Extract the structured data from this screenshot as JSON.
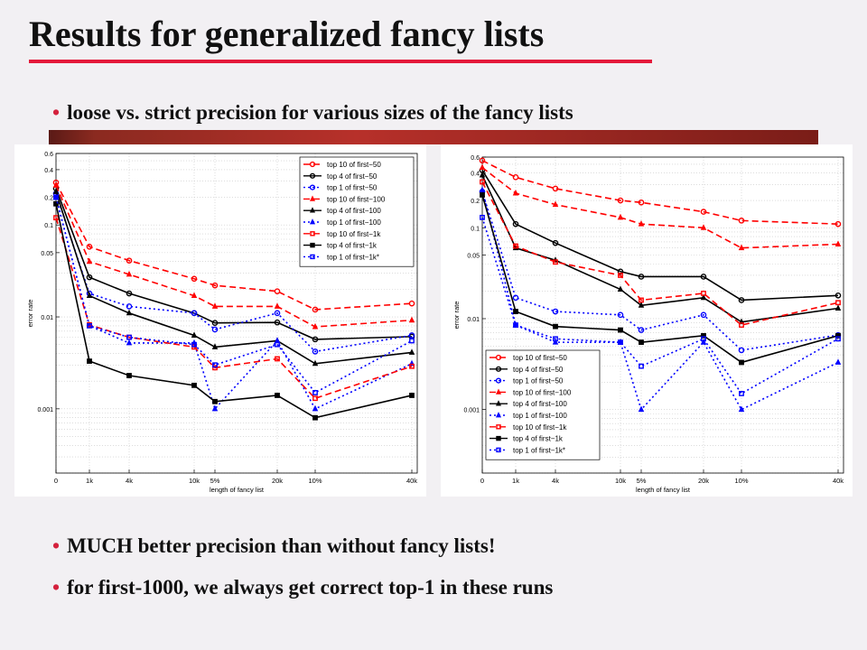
{
  "title": "Results for generalized fancy lists",
  "bullets": {
    "top": "loose vs. strict precision for various sizes of the fancy lists",
    "bottom1": "MUCH better precision than without fancy lists!",
    "bottom2": "for first-1000, we always get correct top-1 in these runs"
  },
  "bullet_glyph": "•",
  "colors": {
    "accent": "#e4193a",
    "red_series": "#ff0000",
    "black_series": "#000000",
    "blue_series": "#0000ff"
  },
  "chart_data": [
    {
      "type": "line",
      "title": "",
      "xlabel": "length of fancy list",
      "ylabel": "error rate",
      "yscale": "log",
      "ylim": [
        0.0002,
        0.6
      ],
      "xtick_labels": [
        "0",
        "1k",
        "4k",
        "10k",
        "5%",
        "20k",
        "10%",
        "40k"
      ],
      "ytick_labels": [
        "0.001",
        "0.01",
        "0.05",
        "0.1",
        "0.2",
        "0.4",
        "0.6"
      ],
      "ytick_values": [
        0.001,
        0.01,
        0.05,
        0.1,
        0.2,
        0.4,
        0.6
      ],
      "grid": true,
      "legend_position": "top-right",
      "series": [
        {
          "name": "top 10 of first−50",
          "color": "#ff0000",
          "style": "dashed",
          "marker": "circle",
          "values": [
            0.29,
            0.058,
            0.041,
            0.026,
            0.022,
            0.019,
            0.012,
            0.014
          ]
        },
        {
          "name": "top 4 of first−50",
          "color": "#000000",
          "style": "solid",
          "marker": "circle",
          "values": [
            0.25,
            0.027,
            0.018,
            0.011,
            0.0086,
            0.0087,
            0.0057,
            0.0061
          ]
        },
        {
          "name": "top 1 of first−50",
          "color": "#0000ff",
          "style": "dotted",
          "marker": "circle",
          "values": [
            0.22,
            0.018,
            0.013,
            0.011,
            0.0073,
            0.011,
            0.0042,
            0.0063
          ]
        },
        {
          "name": "top 10 of first−100",
          "color": "#ff0000",
          "style": "dashed",
          "marker": "triangle",
          "values": [
            0.27,
            0.04,
            0.029,
            0.017,
            0.013,
            0.013,
            0.0078,
            0.0092
          ]
        },
        {
          "name": "top 4 of first−100",
          "color": "#000000",
          "style": "solid",
          "marker": "triangle",
          "values": [
            0.23,
            0.017,
            0.011,
            0.0063,
            0.0047,
            0.0055,
            0.0031,
            0.0041
          ]
        },
        {
          "name": "top 1 of first−100",
          "color": "#0000ff",
          "style": "dotted",
          "marker": "triangle",
          "values": [
            0.2,
            0.008,
            0.0052,
            0.0052,
            0.001,
            0.0055,
            0.001,
            0.0031
          ]
        },
        {
          "name": "top 10 of first−1k",
          "color": "#ff0000",
          "style": "dashed",
          "marker": "square",
          "values": [
            0.12,
            0.0082,
            0.006,
            0.0047,
            0.0028,
            0.0035,
            0.0013,
            0.0029
          ]
        },
        {
          "name": "top 4 of first−1k",
          "color": "#000000",
          "style": "solid",
          "marker": "square",
          "values": [
            0.17,
            0.0033,
            0.0023,
            0.0018,
            0.0012,
            0.0014,
            0.0008,
            0.0014
          ]
        },
        {
          "name": "top 1 of first−1k*",
          "color": "#0000ff",
          "style": "dotted",
          "marker": "square",
          "values": [
            0.2,
            0.008,
            0.006,
            0.005,
            0.003,
            0.005,
            0.0015,
            0.0055
          ]
        }
      ]
    },
    {
      "type": "line",
      "title": "",
      "xlabel": "length of fancy list",
      "ylabel": "error rate",
      "yscale": "log",
      "ylim": [
        0.0002,
        0.6
      ],
      "xtick_labels": [
        "0",
        "1k",
        "4k",
        "10k",
        "5%",
        "20k",
        "10%",
        "40k"
      ],
      "ytick_labels": [
        "0.001",
        "0.01",
        "0.05",
        "0.1",
        "0.2",
        "0.4",
        "0.6"
      ],
      "ytick_values": [
        0.001,
        0.01,
        0.05,
        0.1,
        0.2,
        0.4,
        0.6
      ],
      "grid": true,
      "legend_position": "bottom-left",
      "series": [
        {
          "name": "top 10 of first−50",
          "color": "#ff0000",
          "style": "dashed",
          "marker": "circle",
          "values": [
            0.55,
            0.36,
            0.27,
            0.2,
            0.19,
            0.15,
            0.12,
            0.11
          ]
        },
        {
          "name": "top 4 of first−50",
          "color": "#000000",
          "style": "solid",
          "marker": "circle",
          "values": [
            0.43,
            0.11,
            0.068,
            0.033,
            0.029,
            0.029,
            0.016,
            0.018
          ]
        },
        {
          "name": "top 1 of first−50",
          "color": "#0000ff",
          "style": "dotted",
          "marker": "circle",
          "values": [
            0.25,
            0.017,
            0.012,
            0.011,
            0.0075,
            0.011,
            0.0045,
            0.0066
          ]
        },
        {
          "name": "top 10 of first−100",
          "color": "#ff0000",
          "style": "dashed",
          "marker": "triangle",
          "values": [
            0.46,
            0.24,
            0.18,
            0.13,
            0.11,
            0.1,
            0.06,
            0.066
          ]
        },
        {
          "name": "top 4 of first−100",
          "color": "#000000",
          "style": "solid",
          "marker": "triangle",
          "values": [
            0.38,
            0.06,
            0.044,
            0.021,
            0.014,
            0.017,
            0.0092,
            0.013
          ]
        },
        {
          "name": "top 1 of first−100",
          "color": "#0000ff",
          "style": "dotted",
          "marker": "triangle",
          "values": [
            0.26,
            0.0085,
            0.0055,
            0.0055,
            0.001,
            0.0055,
            0.001,
            0.0033
          ]
        },
        {
          "name": "top 10 of first−1k",
          "color": "#ff0000",
          "style": "dashed",
          "marker": "square",
          "values": [
            0.32,
            0.063,
            0.042,
            0.03,
            0.016,
            0.019,
            0.0085,
            0.015
          ]
        },
        {
          "name": "top 4 of first−1k",
          "color": "#000000",
          "style": "solid",
          "marker": "square",
          "values": [
            0.23,
            0.012,
            0.0082,
            0.0075,
            0.0055,
            0.0065,
            0.0033,
            0.0065
          ]
        },
        {
          "name": "top 1 of first−1k*",
          "color": "#0000ff",
          "style": "dotted",
          "marker": "square",
          "values": [
            0.13,
            0.0085,
            0.006,
            0.0055,
            0.003,
            0.006,
            0.0015,
            0.006
          ]
        }
      ]
    }
  ]
}
